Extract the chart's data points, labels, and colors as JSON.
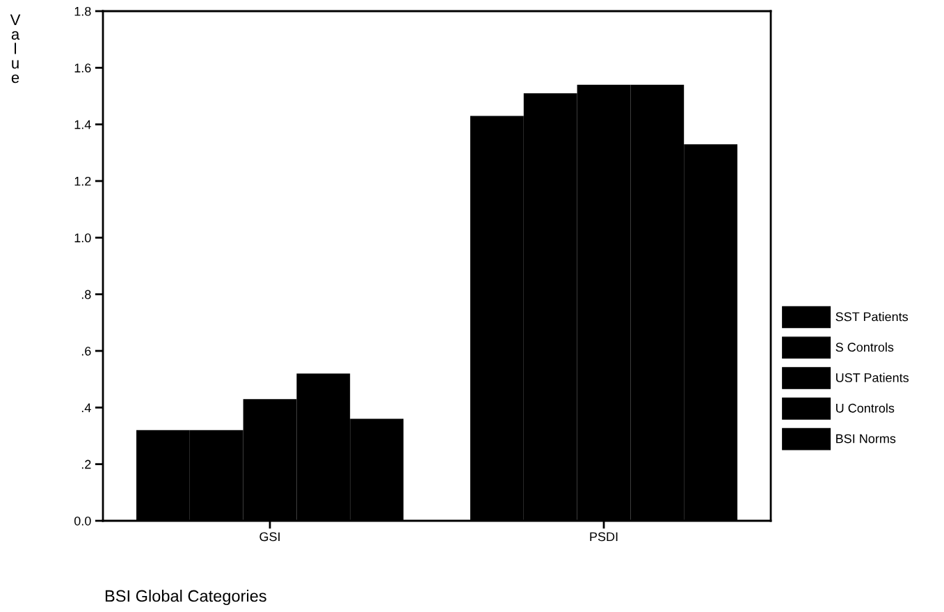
{
  "chart_data": {
    "type": "bar",
    "xlabel": "BSI Global Categories",
    "ylabel": "Value",
    "categories": [
      "GSI",
      "PSDI"
    ],
    "series": [
      {
        "name": "SST Patients",
        "color": "#000000",
        "values": [
          0.32,
          1.43
        ]
      },
      {
        "name": "S Controls",
        "color": "#000000",
        "values": [
          0.32,
          1.51
        ]
      },
      {
        "name": "UST Patients",
        "color": "#000000",
        "values": [
          0.43,
          1.54
        ]
      },
      {
        "name": "U Controls",
        "color": "#000000",
        "values": [
          0.52,
          1.54
        ]
      },
      {
        "name": "BSI Norms",
        "color": "#000000",
        "values": [
          0.36,
          1.33
        ]
      }
    ],
    "ylim": [
      0,
      1.8
    ],
    "yticks": [
      {
        "value": 0,
        "label": "0.0"
      },
      {
        "value": 0.2,
        "label": ".2"
      },
      {
        "value": 0.4,
        "label": ".4"
      },
      {
        "value": 0.6,
        "label": ".6"
      },
      {
        "value": 0.8,
        "label": ".8"
      },
      {
        "value": 1,
        "label": "1.0"
      },
      1.2,
      1.4,
      1.6,
      1.8
    ],
    "grid": false,
    "legend": "right"
  }
}
